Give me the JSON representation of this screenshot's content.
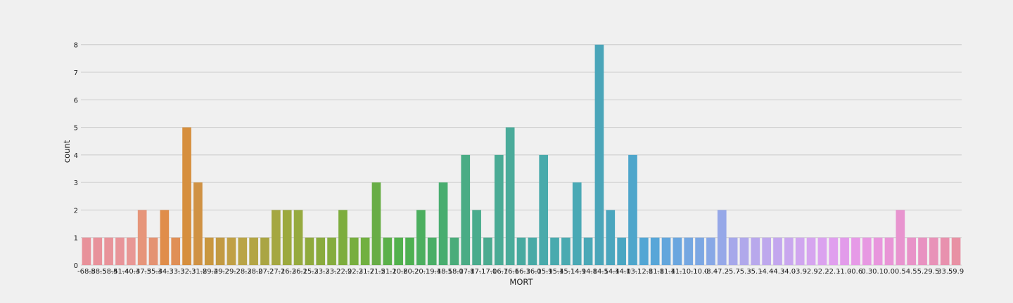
{
  "chart_data": {
    "type": "bar",
    "title": "",
    "xlabel": "MORT",
    "ylabel": "count",
    "ylim": [
      0,
      8.4
    ],
    "yticks": [
      0,
      1,
      2,
      3,
      4,
      5,
      6,
      7,
      8
    ],
    "grid": true,
    "categories": [
      "-68.8",
      "-58.5",
      "-58.4",
      "-51.4",
      "-40.4",
      "-37.5",
      "-35.4",
      "-34.3",
      "-33.3",
      "-32.3",
      "-31.8",
      "-29.4",
      "-29.2",
      "-29.2",
      "-28.3",
      "-28.0",
      "-27.2",
      "-27.1",
      "-26.3",
      "-26.1",
      "-25.3",
      "-23.3",
      "-23.2",
      "-22.9",
      "-22.3",
      "-21.7",
      "-21.5",
      "-21.1",
      "-20.6",
      "-20.2",
      "-20.1",
      "-19.4",
      "-18.5",
      "-18.0",
      "-17.8",
      "-17.1",
      "-17.0",
      "-16.7",
      "-16.6",
      "-16.3",
      "-16.0",
      "-15.9",
      "-15.4",
      "-15.1",
      "-14.9",
      "-14.8",
      "-14.5",
      "-14.4",
      "-14.0",
      "-13.1",
      "-12.8",
      "-11.8",
      "-11.4",
      "-11.1",
      "-10.1",
      "-10.0",
      "-8.4",
      "-7.2",
      "-5.7",
      "-5.3",
      "-5.1",
      "-4.4",
      "-4.3",
      "-4.0",
      "-3.9",
      "-2.9",
      "-2.2",
      "-2.1",
      "-1.0",
      "-0.6",
      "0.3",
      "0.1",
      "0.0",
      "0.5",
      "4.5",
      "5.2",
      "9.5",
      "33.5",
      "59.9"
    ],
    "values": [
      1,
      1,
      1,
      1,
      1,
      2,
      1,
      2,
      1,
      5,
      3,
      1,
      1,
      1,
      1,
      1,
      1,
      2,
      2,
      2,
      1,
      1,
      1,
      2,
      1,
      1,
      3,
      1,
      1,
      1,
      2,
      1,
      3,
      1,
      4,
      2,
      1,
      4,
      5,
      1,
      1,
      4,
      1,
      1,
      3,
      1,
      8,
      2,
      1,
      4,
      1,
      1,
      1,
      1,
      1,
      1,
      1,
      2,
      1,
      1,
      1,
      1,
      1,
      1,
      1,
      1,
      1,
      1,
      1,
      1,
      1,
      1,
      1,
      2,
      1,
      1,
      1,
      1,
      1
    ],
    "colors": [
      "#e8919a",
      "#e8929b",
      "#e8939a",
      "#e89499",
      "#e89795",
      "#e6957a",
      "#e49272",
      "#e08d4a",
      "#e08f56",
      "#d68f3e",
      "#d09244",
      "#c9973f",
      "#c29a42",
      "#c0a046",
      "#b9a447",
      "#b3a545",
      "#aaa543",
      "#a5a741",
      "#9ca93e",
      "#96aa3f",
      "#8faa3d",
      "#8aab3e",
      "#85ac3f",
      "#7dad3d",
      "#77ae3f",
      "#71b040",
      "#68ad46",
      "#5bb04a",
      "#52b14d",
      "#4eb051",
      "#4caf5f",
      "#4aae66",
      "#48ad6f",
      "#4aac7a",
      "#4aac85",
      "#4aac8d",
      "#4bab90",
      "#4aab95",
      "#4aab9a",
      "#48aaa0",
      "#48aaa6",
      "#49aaab",
      "#49aaae",
      "#4aaab1",
      "#4aa9b5",
      "#4aa8b7",
      "#4aa5b9",
      "#4aa6be",
      "#4aa6c2",
      "#4ea6cb",
      "#52a6d4",
      "#57a6d8",
      "#62a6dc",
      "#6aa6df",
      "#75a7e1",
      "#7ca7e3",
      "#88a8e6",
      "#96a8e8",
      "#a6a8ea",
      "#b0a8eb",
      "#b8a8ec",
      "#bea8ed",
      "#c3a7ee",
      "#c9a7ee",
      "#d0a6ef",
      "#d6a5ef",
      "#dba2ef",
      "#e09fee",
      "#e29bea",
      "#e69ae7",
      "#e798e2",
      "#e896dd",
      "#e895d6",
      "#e894cf",
      "#e893c8",
      "#e892c1",
      "#e892b8",
      "#e891ae",
      "#e891a4"
    ]
  }
}
